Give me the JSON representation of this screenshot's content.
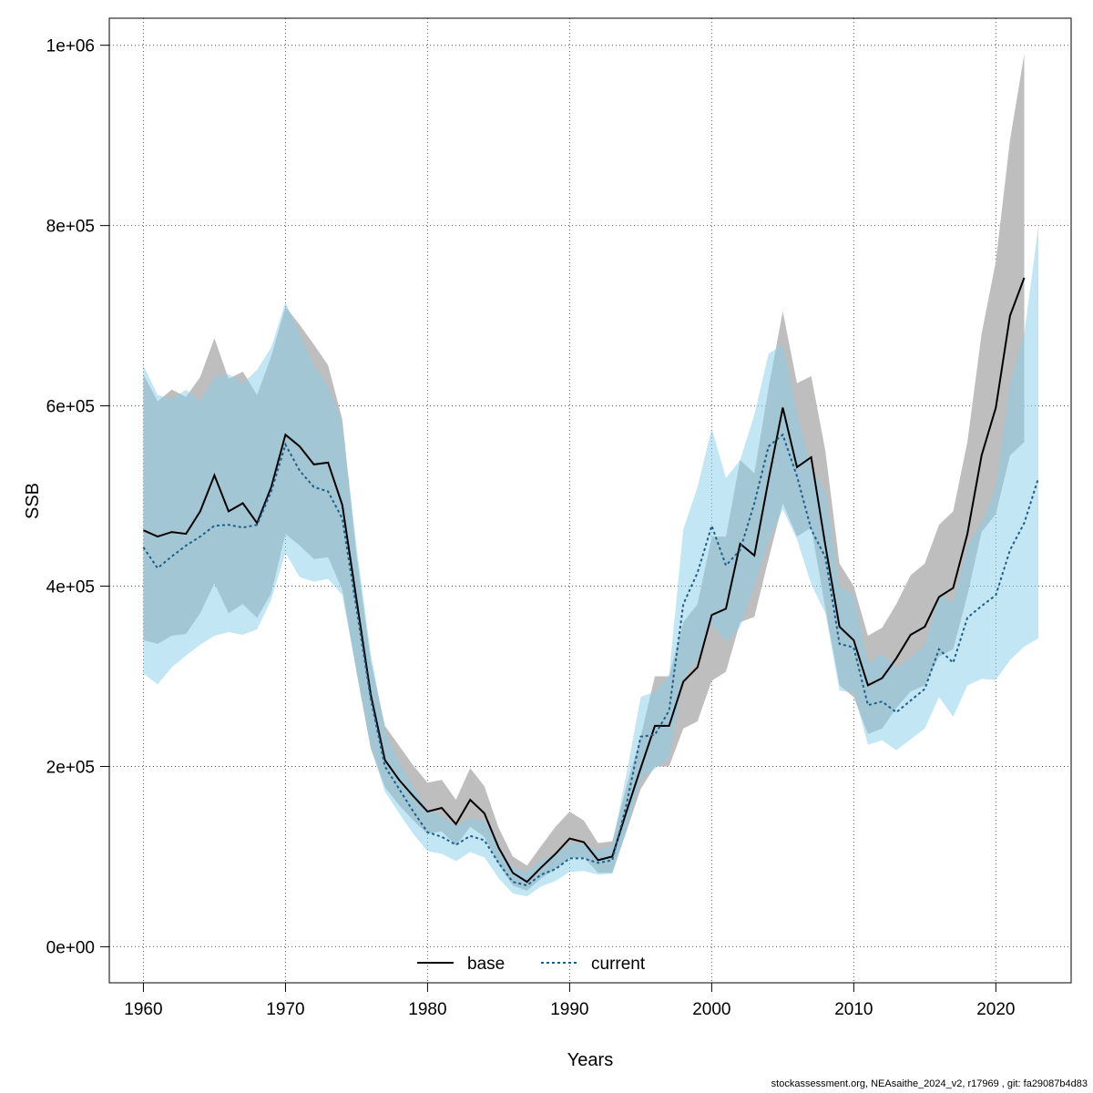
{
  "chart_data": {
    "type": "line",
    "title": "",
    "xlabel": "Years",
    "ylabel": "SSB",
    "xlim": [
      1957.6,
      2025.3
    ],
    "ylim": [
      -40000,
      1030000
    ],
    "xticks": [
      1960,
      1970,
      1980,
      1990,
      2000,
      2010,
      2020
    ],
    "xtick_labels": [
      "1960",
      "1970",
      "1980",
      "1990",
      "2000",
      "2010",
      "2020"
    ],
    "yticks": [
      0,
      200000,
      400000,
      600000,
      800000,
      1000000
    ],
    "ytick_labels": [
      "0e+00",
      "2e+05",
      "4e+05",
      "6e+05",
      "8e+05",
      "1e+06"
    ],
    "grid": true,
    "legend_position": "bottom-center",
    "series": [
      {
        "name": "base",
        "color": "#000000",
        "line_style": "solid",
        "band_color": "#bebebe",
        "x": [
          1960,
          1961,
          1962,
          1963,
          1964,
          1965,
          1966,
          1967,
          1968,
          1969,
          1970,
          1971,
          1972,
          1973,
          1974,
          1975,
          1976,
          1977,
          1978,
          1979,
          1980,
          1981,
          1982,
          1983,
          1984,
          1985,
          1986,
          1987,
          1988,
          1989,
          1990,
          1991,
          1992,
          1993,
          1994,
          1995,
          1996,
          1997,
          1998,
          1999,
          2000,
          2001,
          2002,
          2003,
          2004,
          2005,
          2006,
          2007,
          2008,
          2009,
          2010,
          2011,
          2012,
          2013,
          2014,
          2015,
          2016,
          2017,
          2018,
          2019,
          2020,
          2021,
          2022
        ],
        "y": [
          462000,
          455000,
          460000,
          458000,
          483000,
          523000,
          483000,
          492000,
          470000,
          510000,
          568000,
          555000,
          535000,
          537000,
          490000,
          385000,
          280000,
          207000,
          185000,
          167000,
          150000,
          154000,
          136000,
          163000,
          148000,
          110000,
          82000,
          72000,
          88000,
          103000,
          120000,
          116000,
          96000,
          100000,
          150000,
          198000,
          245000,
          245000,
          294000,
          310000,
          368000,
          375000,
          447000,
          434000,
          518000,
          598000,
          532000,
          543000,
          445000,
          355000,
          340000,
          290000,
          298000,
          320000,
          346000,
          355000,
          388000,
          398000,
          458000,
          545000,
          598000,
          700000,
          742000
        ],
        "lower": [
          340000,
          336000,
          345000,
          347000,
          370000,
          403000,
          370000,
          380000,
          365000,
          392000,
          458000,
          445000,
          430000,
          432000,
          396000,
          305000,
          220000,
          177000,
          157000,
          140000,
          125000,
          128000,
          112000,
          133000,
          122000,
          91000,
          68000,
          62000,
          76000,
          86000,
          98000,
          99000,
          82000,
          82000,
          128000,
          175000,
          200000,
          200000,
          242000,
          250000,
          295000,
          305000,
          360000,
          366000,
          430000,
          492000,
          455000,
          465000,
          375000,
          290000,
          277000,
          236000,
          242000,
          265000,
          283000,
          290000,
          322000,
          330000,
          390000,
          460000,
          480000,
          545000,
          560000
        ],
        "upper": [
          635000,
          605000,
          618000,
          610000,
          632000,
          675000,
          630000,
          638000,
          612000,
          655000,
          710000,
          690000,
          668000,
          645000,
          585000,
          435000,
          318000,
          245000,
          223000,
          201000,
          182000,
          185000,
          163000,
          198000,
          178000,
          132000,
          100000,
          90000,
          112000,
          133000,
          150000,
          140000,
          115000,
          117000,
          178000,
          233000,
          300000,
          300000,
          360000,
          380000,
          455000,
          455000,
          540000,
          525000,
          620000,
          705000,
          625000,
          633000,
          550000,
          425000,
          400000,
          345000,
          354000,
          380000,
          412000,
          425000,
          468000,
          483000,
          560000,
          680000,
          760000,
          895000,
          990000
        ]
      },
      {
        "name": "current",
        "color": "#1c5e86",
        "line_style": "dashed",
        "band_color": "#87ceeb",
        "x": [
          1960,
          1961,
          1962,
          1963,
          1964,
          1965,
          1966,
          1967,
          1968,
          1969,
          1970,
          1971,
          1972,
          1973,
          1974,
          1975,
          1976,
          1977,
          1978,
          1979,
          1980,
          1981,
          1982,
          1983,
          1984,
          1985,
          1986,
          1987,
          1988,
          1989,
          1990,
          1991,
          1992,
          1993,
          1994,
          1995,
          1996,
          1997,
          1998,
          1999,
          2000,
          2001,
          2002,
          2003,
          2004,
          2005,
          2006,
          2007,
          2008,
          2009,
          2010,
          2011,
          2012,
          2013,
          2014,
          2015,
          2016,
          2017,
          2018,
          2019,
          2020,
          2021,
          2022,
          2023
        ],
        "y": [
          443000,
          420000,
          433000,
          445000,
          455000,
          467000,
          468000,
          465000,
          468000,
          505000,
          557000,
          528000,
          510000,
          505000,
          475000,
          375000,
          275000,
          200000,
          175000,
          150000,
          127000,
          122000,
          113000,
          123000,
          118000,
          93000,
          72000,
          68000,
          80000,
          86000,
          98000,
          98000,
          93000,
          96000,
          158000,
          233000,
          235000,
          262000,
          380000,
          415000,
          467000,
          423000,
          440000,
          492000,
          555000,
          568000,
          522000,
          463000,
          432000,
          336000,
          332000,
          268000,
          272000,
          260000,
          273000,
          286000,
          330000,
          315000,
          365000,
          378000,
          390000,
          440000,
          470000,
          520000
        ],
        "lower": [
          303000,
          291000,
          310000,
          323000,
          335000,
          345000,
          349000,
          346000,
          352000,
          385000,
          437000,
          410000,
          405000,
          408000,
          390000,
          305000,
          222000,
          172000,
          148000,
          125000,
          106000,
          103000,
          95000,
          105000,
          99000,
          76000,
          59000,
          56000,
          67000,
          73000,
          83000,
          84000,
          80000,
          81000,
          128000,
          187000,
          197000,
          210000,
          296000,
          320000,
          358000,
          338000,
          355000,
          401000,
          451000,
          485000,
          452000,
          402000,
          370000,
          284000,
          282000,
          224000,
          229000,
          218000,
          230000,
          242000,
          277000,
          255000,
          290000,
          297000,
          296000,
          318000,
          333000,
          342000
        ],
        "upper": [
          645000,
          612000,
          608000,
          618000,
          605000,
          632000,
          635000,
          625000,
          640000,
          665000,
          715000,
          680000,
          645000,
          622000,
          580000,
          445000,
          326000,
          240000,
          205000,
          177000,
          152000,
          145000,
          134000,
          143000,
          140000,
          112000,
          87000,
          83000,
          96000,
          103000,
          115000,
          114000,
          107000,
          113000,
          192000,
          277000,
          283000,
          302000,
          463000,
          510000,
          575000,
          520000,
          540000,
          590000,
          658000,
          668000,
          593000,
          530000,
          505000,
          400000,
          390000,
          315000,
          325000,
          310000,
          320000,
          335000,
          390000,
          382000,
          445000,
          470000,
          510000,
          625000,
          680000,
          800000
        ]
      }
    ]
  },
  "footer": {
    "credit": "stockassessment.org, NEAsaithe_2024_v2, r17969 , git: fa29087b4d83"
  }
}
